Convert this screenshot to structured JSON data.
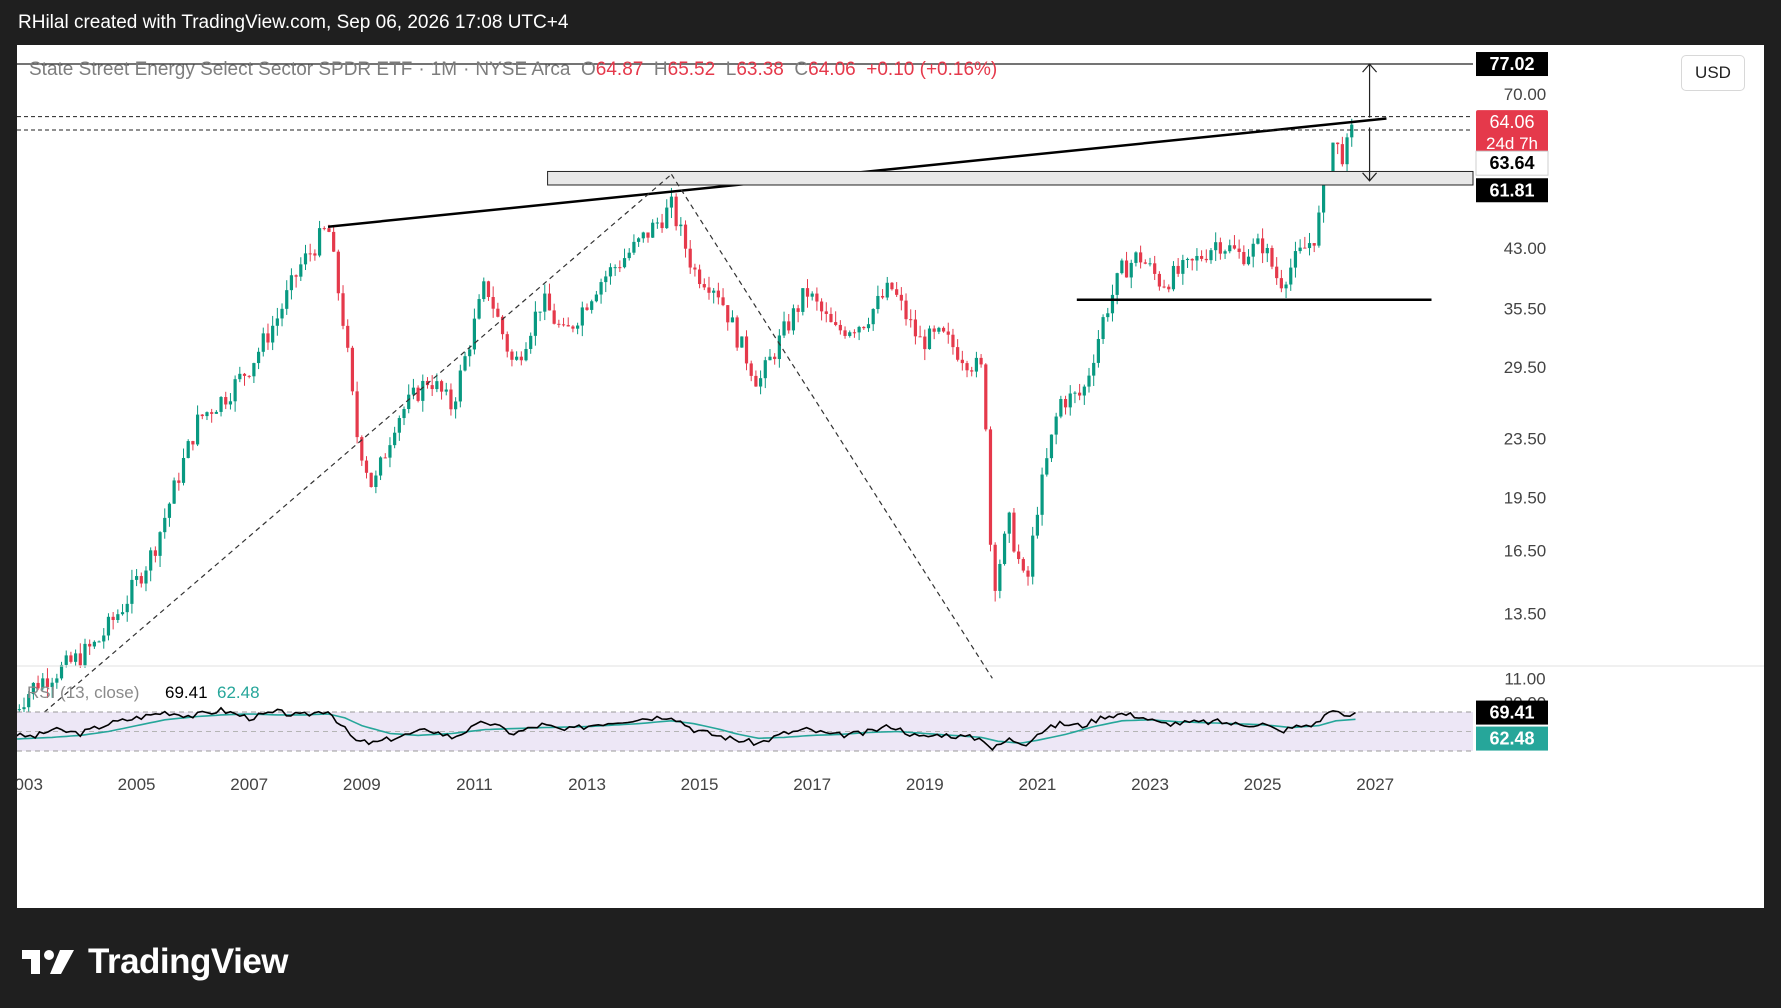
{
  "header": {
    "credit": "RHilal created with TradingView.com, Sep 06, 2026 17:08 UTC+4"
  },
  "legend": {
    "symbol": "State Street Energy Select Sector SPDR ETF",
    "interval": "1M",
    "exchange": "NYSE Arca",
    "open_label": "O",
    "open": "64.87",
    "high_label": "H",
    "high": "65.52",
    "low_label": "L",
    "low": "63.38",
    "close_label": "C",
    "close": "64.06",
    "change": "+0.10 (+0.16%)"
  },
  "currency_button": "USD",
  "footer": {
    "brand": "TradingView",
    "logo_icon": "tradingview-logo-icon"
  },
  "colors": {
    "up": "#089981",
    "down": "#e5394b",
    "rsi": "#000000",
    "rsi_ma": "#26a69a",
    "rsi_band": "#ede7f6",
    "price_tag": "#e5394b"
  },
  "chart_data": [
    {
      "type": "candlestick",
      "title": "State Street Energy Select Sector SPDR ETF · 1M · NYSE Arca",
      "scale": "log",
      "ylim": [
        9,
        80
      ],
      "xlim": [
        2002.7,
        2027.8
      ],
      "y_ticks": [
        "70.00",
        "43.00",
        "35.50",
        "29.50",
        "23.50",
        "19.50",
        "16.50",
        "13.50",
        "11.00"
      ],
      "x_ticks": [
        "2003",
        "2005",
        "2007",
        "2009",
        "2011",
        "2013",
        "2015",
        "2017",
        "2019",
        "2021",
        "2023",
        "2025",
        "2027"
      ],
      "grid": false,
      "last_price": 64.06,
      "countdown": "24d 7h",
      "price_tags": [
        {
          "label": "77.02",
          "value": 77.02,
          "style": "dark"
        },
        {
          "label": "64.06",
          "value": 64.06,
          "style": "red"
        },
        {
          "label": "63.64",
          "value": 63.64,
          "style": "light"
        },
        {
          "label": "61.81",
          "value": 61.81,
          "style": "dark"
        }
      ],
      "closes": [
        {
          "t": 2002.75,
          "p": 9.8
        },
        {
          "t": 2003.2,
          "p": 10.8
        },
        {
          "t": 2003.8,
          "p": 11.5
        },
        {
          "t": 2004.3,
          "p": 12.3
        },
        {
          "t": 2004.8,
          "p": 14.0
        },
        {
          "t": 2005.3,
          "p": 16.5
        },
        {
          "t": 2005.8,
          "p": 21.5
        },
        {
          "t": 2006.1,
          "p": 25.0
        },
        {
          "t": 2006.6,
          "p": 27.0
        },
        {
          "t": 2007.0,
          "p": 29.5
        },
        {
          "t": 2007.5,
          "p": 34.5
        },
        {
          "t": 2007.9,
          "p": 40.5
        },
        {
          "t": 2008.4,
          "p": 46.0
        },
        {
          "t": 2008.7,
          "p": 33.0
        },
        {
          "t": 2008.9,
          "p": 24.0
        },
        {
          "t": 2009.2,
          "p": 20.0
        },
        {
          "t": 2009.6,
          "p": 25.0
        },
        {
          "t": 2010.2,
          "p": 28.5
        },
        {
          "t": 2010.6,
          "p": 26.0
        },
        {
          "t": 2011.2,
          "p": 38.5
        },
        {
          "t": 2011.7,
          "p": 29.5
        },
        {
          "t": 2012.2,
          "p": 36.5
        },
        {
          "t": 2012.6,
          "p": 32.5
        },
        {
          "t": 2013.2,
          "p": 38.5
        },
        {
          "t": 2013.9,
          "p": 43.5
        },
        {
          "t": 2014.5,
          "p": 49.0
        },
        {
          "t": 2014.9,
          "p": 40.0
        },
        {
          "t": 2015.3,
          "p": 38.0
        },
        {
          "t": 2015.7,
          "p": 32.0
        },
        {
          "t": 2016.05,
          "p": 28.0
        },
        {
          "t": 2016.5,
          "p": 33.0
        },
        {
          "t": 2016.9,
          "p": 37.5
        },
        {
          "t": 2017.4,
          "p": 33.0
        },
        {
          "t": 2017.9,
          "p": 34.0
        },
        {
          "t": 2018.4,
          "p": 38.0
        },
        {
          "t": 2018.9,
          "p": 32.0
        },
        {
          "t": 2019.3,
          "p": 32.5
        },
        {
          "t": 2019.8,
          "p": 30.0
        },
        {
          "t": 2020.05,
          "p": 29.0
        },
        {
          "t": 2020.2,
          "p": 14.5
        },
        {
          "t": 2020.5,
          "p": 18.0
        },
        {
          "t": 2020.8,
          "p": 14.5
        },
        {
          "t": 2021.0,
          "p": 19.0
        },
        {
          "t": 2021.4,
          "p": 26.5
        },
        {
          "t": 2021.8,
          "p": 27.0
        },
        {
          "t": 2022.2,
          "p": 35.0
        },
        {
          "t": 2022.5,
          "p": 40.0
        },
        {
          "t": 2022.8,
          "p": 42.0
        },
        {
          "t": 2023.2,
          "p": 38.5
        },
        {
          "t": 2023.7,
          "p": 40.5
        },
        {
          "t": 2024.2,
          "p": 44.0
        },
        {
          "t": 2024.6,
          "p": 42.0
        },
        {
          "t": 2025.0,
          "p": 43.5
        },
        {
          "t": 2025.3,
          "p": 38.5
        },
        {
          "t": 2025.6,
          "p": 41.5
        },
        {
          "t": 2025.95,
          "p": 45.0
        },
        {
          "t": 2026.1,
          "p": 52.0
        },
        {
          "t": 2026.25,
          "p": 60.0
        },
        {
          "t": 2026.45,
          "p": 57.5
        },
        {
          "t": 2026.65,
          "p": 64.06
        }
      ],
      "overlays": [
        {
          "kind": "trendline",
          "from": [
            2008.4,
            46.0
          ],
          "to": [
            2027.2,
            64.8
          ]
        },
        {
          "kind": "horizontal",
          "from": [
            2021.7,
            36.5
          ],
          "to": [
            2028.0,
            36.5
          ]
        },
        {
          "kind": "zone",
          "from": [
            2012.3,
            52.5
          ],
          "to": [
            2028.0,
            54.8
          ]
        },
        {
          "kind": "dashed",
          "from": [
            2002.75,
            9.0
          ],
          "to": [
            2014.5,
            54.3
          ]
        },
        {
          "kind": "dashed",
          "from": [
            2014.5,
            54.3
          ],
          "to": [
            2020.2,
            11.0
          ]
        },
        {
          "kind": "hline_dashed",
          "value": 65.2
        },
        {
          "kind": "hline_dashed",
          "value": 62.5
        },
        {
          "kind": "hline_solid",
          "value": 77.02
        },
        {
          "kind": "arrow",
          "at": 2026.9,
          "from": 65.0,
          "to": 77.0
        },
        {
          "kind": "arrow",
          "at": 2026.9,
          "from": 63.0,
          "to": 53.2
        }
      ]
    },
    {
      "type": "line",
      "title": "RSI (13, close)",
      "ylim": [
        25,
        85
      ],
      "band": [
        30,
        70
      ],
      "tick": "80.00",
      "series": [
        {
          "name": "RSI",
          "label": "69.41",
          "last": 69.41,
          "points": [
            [
              2002.75,
              46
            ],
            [
              2003.2,
              45
            ],
            [
              2003.5,
              52
            ],
            [
              2004.0,
              48
            ],
            [
              2004.5,
              58
            ],
            [
              2005.0,
              64
            ],
            [
              2005.5,
              70
            ],
            [
              2006.0,
              66
            ],
            [
              2006.5,
              72
            ],
            [
              2007.0,
              64
            ],
            [
              2007.5,
              70
            ],
            [
              2007.9,
              66
            ],
            [
              2008.4,
              72
            ],
            [
              2008.7,
              52
            ],
            [
              2008.9,
              40
            ],
            [
              2009.2,
              38
            ],
            [
              2009.6,
              44
            ],
            [
              2010.2,
              52
            ],
            [
              2010.6,
              44
            ],
            [
              2011.2,
              60
            ],
            [
              2011.7,
              48
            ],
            [
              2012.2,
              57
            ],
            [
              2012.6,
              51
            ],
            [
              2013.2,
              58
            ],
            [
              2013.9,
              63
            ],
            [
              2014.5,
              66
            ],
            [
              2014.9,
              52
            ],
            [
              2015.3,
              46
            ],
            [
              2015.7,
              41
            ],
            [
              2016.05,
              38
            ],
            [
              2016.5,
              48
            ],
            [
              2016.9,
              52
            ],
            [
              2017.4,
              46
            ],
            [
              2017.9,
              48
            ],
            [
              2018.4,
              56
            ],
            [
              2018.9,
              44
            ],
            [
              2019.3,
              47
            ],
            [
              2019.8,
              44
            ],
            [
              2020.05,
              42
            ],
            [
              2020.2,
              32
            ],
            [
              2020.5,
              42
            ],
            [
              2020.8,
              38
            ],
            [
              2021.0,
              48
            ],
            [
              2021.4,
              58
            ],
            [
              2021.8,
              56
            ],
            [
              2022.2,
              66
            ],
            [
              2022.5,
              68
            ],
            [
              2022.8,
              66
            ],
            [
              2023.2,
              58
            ],
            [
              2023.7,
              59
            ],
            [
              2024.2,
              60
            ],
            [
              2024.6,
              57
            ],
            [
              2025.0,
              58
            ],
            [
              2025.3,
              50
            ],
            [
              2025.6,
              55
            ],
            [
              2025.95,
              58
            ],
            [
              2026.1,
              66
            ],
            [
              2026.25,
              74
            ],
            [
              2026.45,
              64
            ],
            [
              2026.65,
              69.41
            ]
          ]
        },
        {
          "name": "RSI-based MA",
          "label": "62.48",
          "last": 62.48,
          "points": [
            [
              2002.75,
              42
            ],
            [
              2003.5,
              44
            ],
            [
              2004.0,
              46
            ],
            [
              2004.5,
              50
            ],
            [
              2005.0,
              56
            ],
            [
              2005.5,
              62
            ],
            [
              2006.0,
              65
            ],
            [
              2006.5,
              67
            ],
            [
              2007.0,
              68
            ],
            [
              2007.5,
              67
            ],
            [
              2008.0,
              67
            ],
            [
              2008.4,
              68
            ],
            [
              2008.7,
              64
            ],
            [
              2009.0,
              56
            ],
            [
              2009.5,
              48
            ],
            [
              2010.0,
              46
            ],
            [
              2010.6,
              48
            ],
            [
              2011.2,
              52
            ],
            [
              2011.7,
              53
            ],
            [
              2012.2,
              54
            ],
            [
              2013.0,
              55
            ],
            [
              2013.9,
              58
            ],
            [
              2014.5,
              61
            ],
            [
              2014.9,
              58
            ],
            [
              2015.3,
              53
            ],
            [
              2015.7,
              47
            ],
            [
              2016.05,
              43
            ],
            [
              2016.5,
              44
            ],
            [
              2017.0,
              46
            ],
            [
              2017.5,
              47
            ],
            [
              2018.0,
              49
            ],
            [
              2018.5,
              50
            ],
            [
              2019.0,
              48
            ],
            [
              2019.5,
              46
            ],
            [
              2020.0,
              44
            ],
            [
              2020.3,
              40
            ],
            [
              2020.7,
              38
            ],
            [
              2021.0,
              41
            ],
            [
              2021.5,
              47
            ],
            [
              2022.0,
              55
            ],
            [
              2022.5,
              61
            ],
            [
              2023.0,
              62
            ],
            [
              2023.5,
              60
            ],
            [
              2024.0,
              59
            ],
            [
              2024.5,
              58
            ],
            [
              2025.0,
              57
            ],
            [
              2025.5,
              54
            ],
            [
              2026.0,
              56
            ],
            [
              2026.3,
              61
            ],
            [
              2026.65,
              62.48
            ]
          ]
        }
      ]
    }
  ]
}
